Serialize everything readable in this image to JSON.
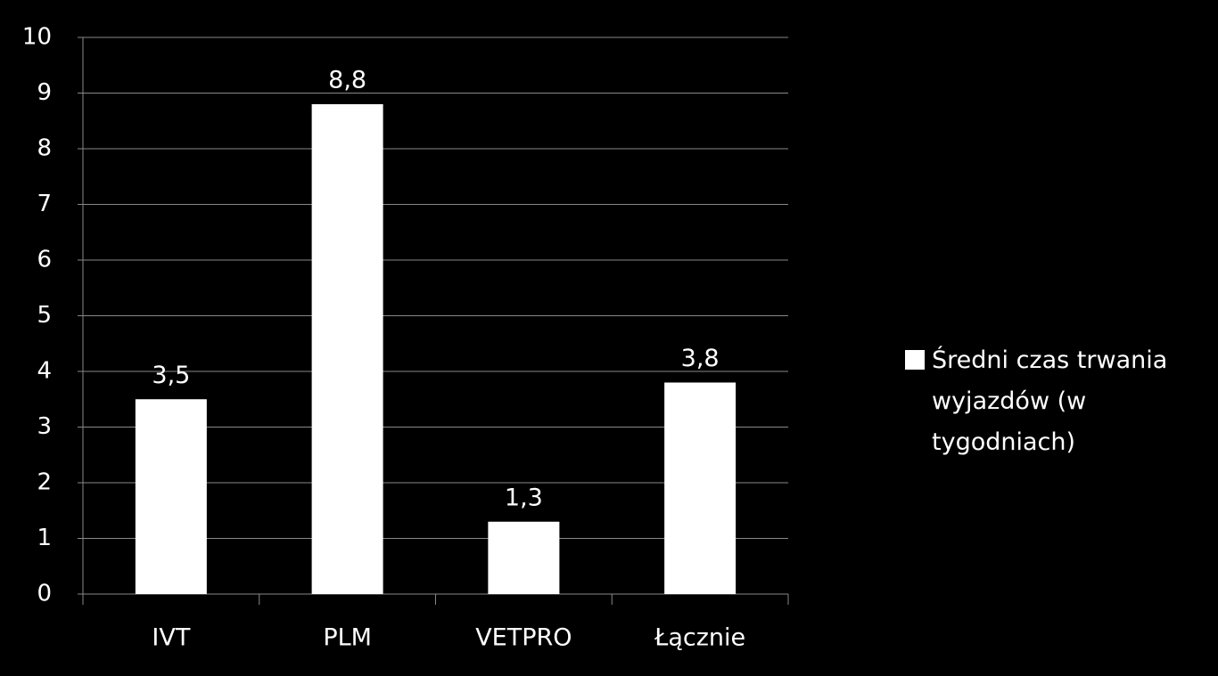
{
  "chart_data": {
    "type": "bar",
    "categories": [
      "IVT",
      "PLM",
      "VETPRO",
      "Łącznie"
    ],
    "series": [
      {
        "name": "Średni czas trwania wyjazdów (w tygodniach)",
        "color": "#ffffff",
        "values": [
          3.5,
          8.8,
          1.3,
          3.8
        ],
        "value_labels": [
          "3,5",
          "8,8",
          "1,3",
          "3,8"
        ]
      }
    ],
    "ylim": [
      0,
      10
    ],
    "yticks": [
      0,
      1,
      2,
      3,
      4,
      5,
      6,
      7,
      8,
      9,
      10
    ],
    "grid": true,
    "legend": "right"
  }
}
